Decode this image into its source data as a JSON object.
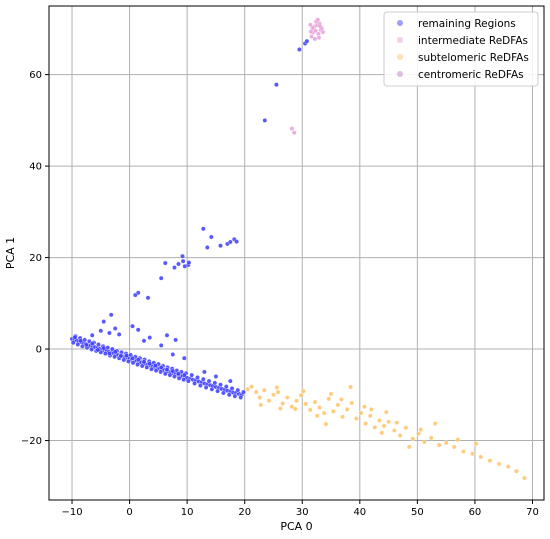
{
  "chart_data": {
    "type": "scatter",
    "xlabel": "PCA 0",
    "ylabel": "PCA 1",
    "xlim": [
      -14,
      72
    ],
    "ylim": [
      -33,
      75
    ],
    "xticks": [
      -10,
      0,
      10,
      20,
      30,
      40,
      50,
      60,
      70
    ],
    "yticks": [
      -20,
      0,
      20,
      40,
      60
    ],
    "grid": true,
    "legend_position": "top-right",
    "series": [
      {
        "name": "remaining Regions",
        "color": "#3b3bff",
        "points": [
          [
            -10,
            2.2
          ],
          [
            -9.6,
            2.0
          ],
          [
            -9.2,
            1.9
          ],
          [
            -8.8,
            1.6
          ],
          [
            -8.4,
            1.5
          ],
          [
            -8,
            1.3
          ],
          [
            -7.6,
            1.1
          ],
          [
            -7.2,
            0.9
          ],
          [
            -6.8,
            0.7
          ],
          [
            -6.4,
            0.6
          ],
          [
            -6,
            0.4
          ],
          [
            -5.6,
            0.2
          ],
          [
            -5.2,
            0.1
          ],
          [
            -4.8,
            -0.1
          ],
          [
            -4.4,
            -0.3
          ],
          [
            -4,
            -0.4
          ],
          [
            -3.6,
            -0.6
          ],
          [
            -3.2,
            -0.8
          ],
          [
            -2.8,
            -0.9
          ],
          [
            -2.4,
            -1.1
          ],
          [
            -2,
            -1.3
          ],
          [
            -1.6,
            -1.4
          ],
          [
            -1.2,
            -1.6
          ],
          [
            -0.8,
            -1.8
          ],
          [
            -0.4,
            -1.9
          ],
          [
            0,
            -2.1
          ],
          [
            0.4,
            -2.3
          ],
          [
            0.8,
            -2.4
          ],
          [
            1.2,
            -2.6
          ],
          [
            1.6,
            -2.8
          ],
          [
            2,
            -2.9
          ],
          [
            2.4,
            -3.1
          ],
          [
            2.8,
            -3.3
          ],
          [
            3.2,
            -3.4
          ],
          [
            3.6,
            -3.6
          ],
          [
            4,
            -3.8
          ],
          [
            4.4,
            -3.9
          ],
          [
            4.8,
            -4.1
          ],
          [
            5.2,
            -4.3
          ],
          [
            5.6,
            -4.4
          ],
          [
            6,
            -4.6
          ],
          [
            6.4,
            -4.8
          ],
          [
            6.8,
            -4.9
          ],
          [
            7.2,
            -5.1
          ],
          [
            7.6,
            -5.3
          ],
          [
            8,
            -5.4
          ],
          [
            8.4,
            -5.6
          ],
          [
            8.8,
            -5.8
          ],
          [
            9.2,
            -5.9
          ],
          [
            9.6,
            -6.1
          ],
          [
            10,
            -6.3
          ],
          [
            10.5,
            -6.5
          ],
          [
            11,
            -6.7
          ],
          [
            11.5,
            -6.9
          ],
          [
            12,
            -7.1
          ],
          [
            12.5,
            -7.3
          ],
          [
            13,
            -7.5
          ],
          [
            13.5,
            -7.7
          ],
          [
            14,
            -7.9
          ],
          [
            14.5,
            -8.1
          ],
          [
            15,
            -8.3
          ],
          [
            15.5,
            -8.5
          ],
          [
            16,
            -8.7
          ],
          [
            16.5,
            -8.9
          ],
          [
            17,
            -9.1
          ],
          [
            17.5,
            -9.3
          ],
          [
            18,
            -9.5
          ],
          [
            18.5,
            -9.6
          ],
          [
            19,
            -9.8
          ],
          [
            19.5,
            -10
          ],
          [
            -9.8,
            1.4
          ],
          [
            -9.4,
            2.8
          ],
          [
            -9,
            1.0
          ],
          [
            -8.6,
            2.4
          ],
          [
            -8.2,
            0.6
          ],
          [
            -7.8,
            2.0
          ],
          [
            -7.4,
            0.3
          ],
          [
            -7,
            1.7
          ],
          [
            -6.6,
            -0.1
          ],
          [
            -6.2,
            1.4
          ],
          [
            -5.8,
            -0.4
          ],
          [
            -5.4,
            1.0
          ],
          [
            -5,
            -0.7
          ],
          [
            -4.6,
            0.6
          ],
          [
            -4.2,
            -1.0
          ],
          [
            -3.8,
            0.3
          ],
          [
            -3.4,
            -1.4
          ],
          [
            -3,
            0.0
          ],
          [
            -2.6,
            -1.7
          ],
          [
            -2.2,
            -0.4
          ],
          [
            -1.8,
            -2.0
          ],
          [
            -1.4,
            -0.7
          ],
          [
            -1,
            -2.4
          ],
          [
            -0.6,
            -1.0
          ],
          [
            -0.2,
            -2.7
          ],
          [
            0.2,
            -1.3
          ],
          [
            0.6,
            -3.0
          ],
          [
            1,
            -1.7
          ],
          [
            1.4,
            -3.4
          ],
          [
            1.8,
            -2.0
          ],
          [
            2.2,
            -3.7
          ],
          [
            2.6,
            -2.3
          ],
          [
            3,
            -4.0
          ],
          [
            3.4,
            -2.7
          ],
          [
            3.8,
            -4.4
          ],
          [
            4.2,
            -3.0
          ],
          [
            4.6,
            -4.7
          ],
          [
            5,
            -3.3
          ],
          [
            5.4,
            -5.0
          ],
          [
            5.8,
            -3.7
          ],
          [
            6.2,
            -5.4
          ],
          [
            6.6,
            -4.0
          ],
          [
            7,
            -5.7
          ],
          [
            7.4,
            -4.3
          ],
          [
            7.8,
            -6.0
          ],
          [
            8.2,
            -4.7
          ],
          [
            8.6,
            -6.4
          ],
          [
            9,
            -5.0
          ],
          [
            9.4,
            -6.7
          ],
          [
            9.8,
            -5.3
          ],
          [
            10.2,
            -7.0
          ],
          [
            10.8,
            -5.7
          ],
          [
            11.3,
            -7.5
          ],
          [
            11.8,
            -6.2
          ],
          [
            12.3,
            -8.0
          ],
          [
            12.8,
            -6.6
          ],
          [
            13.3,
            -8.4
          ],
          [
            13.8,
            -7.0
          ],
          [
            14.3,
            -8.8
          ],
          [
            14.8,
            -7.4
          ],
          [
            15.3,
            -9.2
          ],
          [
            15.8,
            -7.8
          ],
          [
            16.3,
            -9.6
          ],
          [
            16.8,
            -8.2
          ],
          [
            17.3,
            -10.0
          ],
          [
            17.8,
            -8.6
          ],
          [
            18.3,
            -10.3
          ],
          [
            18.8,
            -9.0
          ],
          [
            19.3,
            -10.6
          ],
          [
            19.8,
            -9.4
          ],
          [
            -9.5,
            2.6
          ],
          [
            -8.5,
            1.8
          ],
          [
            -7.5,
            0.9
          ],
          [
            -6.5,
            1.2
          ],
          [
            -5.5,
            -0.2
          ],
          [
            -4.5,
            0.2
          ],
          [
            -3.5,
            -1.0
          ],
          [
            -2.5,
            -0.6
          ],
          [
            -1.5,
            -1.5
          ],
          [
            -0.5,
            -1.4
          ],
          [
            0.5,
            -2.0
          ],
          [
            1.5,
            -2.3
          ],
          [
            2.5,
            -2.8
          ],
          [
            3.5,
            -3.2
          ],
          [
            4.5,
            -3.6
          ],
          [
            5.5,
            -4.0
          ],
          [
            6.5,
            -4.5
          ],
          [
            7.5,
            -4.8
          ],
          [
            8.5,
            -5.4
          ],
          [
            9.5,
            -5.7
          ],
          [
            -3.5,
            3.5
          ],
          [
            -2.5,
            4.5
          ],
          [
            -4.5,
            6.0
          ],
          [
            -3.2,
            7.5
          ],
          [
            -1.8,
            3.2
          ],
          [
            0.5,
            5.0
          ],
          [
            1.5,
            4.2
          ],
          [
            2.5,
            1.8
          ],
          [
            3.5,
            2.5
          ],
          [
            5.5,
            0.8
          ],
          [
            7.5,
            -1.2
          ],
          [
            9.5,
            -2.0
          ],
          [
            13,
            -5.0
          ],
          [
            15,
            -6.0
          ],
          [
            17.5,
            -7.0
          ],
          [
            -6.5,
            3.0
          ],
          [
            -5,
            4.0
          ],
          [
            6.5,
            3.0
          ],
          [
            8,
            2.0
          ],
          [
            1.5,
            12.3
          ],
          [
            1,
            11.8
          ],
          [
            3.2,
            11.2
          ],
          [
            5.5,
            15.5
          ],
          [
            6.2,
            18.8
          ],
          [
            7.8,
            17.8
          ],
          [
            8.5,
            18.6
          ],
          [
            9.2,
            20.3
          ],
          [
            9.3,
            19.2
          ],
          [
            9.6,
            18.1
          ],
          [
            10.2,
            18.4
          ],
          [
            10.3,
            18.9
          ],
          [
            12.8,
            26.3
          ],
          [
            13.5,
            22.2
          ],
          [
            14.2,
            24.5
          ],
          [
            15.8,
            22.6
          ],
          [
            17,
            23
          ],
          [
            17.5,
            23.4
          ],
          [
            18.2,
            24
          ],
          [
            18.6,
            23.5
          ],
          [
            23.5,
            50.0
          ],
          [
            25.5,
            57.8
          ],
          [
            29.5,
            65.5
          ],
          [
            30.5,
            66.8
          ],
          [
            30.8,
            67.3
          ]
        ]
      },
      {
        "name": "intermediate ReDFAs",
        "color": "#e8a0d8",
        "points": [
          [
            31.6,
            68.3
          ],
          [
            31.9,
            69.2
          ],
          [
            32.1,
            70.5
          ],
          [
            32.3,
            69.6
          ],
          [
            32.6,
            70.8
          ],
          [
            32.8,
            68.9
          ],
          [
            33,
            71.2
          ],
          [
            33.2,
            69.8
          ],
          [
            32.4,
            71.6
          ],
          [
            31.8,
            70.2
          ],
          [
            33.4,
            70.1
          ],
          [
            32.9,
            68.1
          ],
          [
            31.5,
            69.4
          ],
          [
            32.7,
            72.0
          ],
          [
            33.6,
            69.3
          ],
          [
            28.2,
            48.2
          ],
          [
            28.6,
            47.3
          ],
          [
            32.2,
            67.8
          ],
          [
            31.4,
            70.9
          ],
          [
            33.1,
            70.6
          ]
        ]
      },
      {
        "name": "subtelomeric ReDFAs",
        "color": "#ffc266",
        "points": [
          [
            20.5,
            -8.8
          ],
          [
            21.2,
            -8.2
          ],
          [
            22,
            -9.4
          ],
          [
            22.6,
            -10.6
          ],
          [
            23.4,
            -9.0
          ],
          [
            24.2,
            -11.3
          ],
          [
            25,
            -10.0
          ],
          [
            25.8,
            -9.4
          ],
          [
            26.6,
            -11.9
          ],
          [
            27.4,
            -10.6
          ],
          [
            28.2,
            -12.6
          ],
          [
            29,
            -11.3
          ],
          [
            29.8,
            -10.1
          ],
          [
            30.6,
            -12.0
          ],
          [
            31.4,
            -13.3
          ],
          [
            32.2,
            -11.6
          ],
          [
            33,
            -12.8
          ],
          [
            33.8,
            -14.0
          ],
          [
            34.6,
            -10.9
          ],
          [
            35.4,
            -13.6
          ],
          [
            36.2,
            -12.2
          ],
          [
            37,
            -14.8
          ],
          [
            37.8,
            -13.2
          ],
          [
            38.6,
            -11.8
          ],
          [
            39.4,
            -15.2
          ],
          [
            40.2,
            -14.0
          ],
          [
            41,
            -16.3
          ],
          [
            41.8,
            -14.6
          ],
          [
            42.6,
            -17.1
          ],
          [
            43.4,
            -15.6
          ],
          [
            44.2,
            -16.8
          ],
          [
            45,
            -15.9
          ],
          [
            46,
            -17.8
          ],
          [
            47,
            -18.9
          ],
          [
            48,
            -17.2
          ],
          [
            49.2,
            -19.6
          ],
          [
            50.2,
            -18.5
          ],
          [
            51.2,
            -20.3
          ],
          [
            52.4,
            -19.4
          ],
          [
            53.8,
            -21.0
          ],
          [
            55,
            -20.5
          ],
          [
            56.4,
            -21.4
          ],
          [
            58,
            -22.4
          ],
          [
            59.6,
            -22.9
          ],
          [
            61,
            -23.6
          ],
          [
            62.6,
            -24.4
          ],
          [
            64.2,
            -25.1
          ],
          [
            65.8,
            -25.7
          ],
          [
            67.2,
            -26.7
          ],
          [
            68.6,
            -28.2
          ],
          [
            46.4,
            -16.1
          ],
          [
            38.4,
            -8.3
          ],
          [
            25.6,
            -8.4
          ],
          [
            28.8,
            -13.1
          ],
          [
            34.1,
            -16.4
          ],
          [
            43.8,
            -18.3
          ],
          [
            50.6,
            -17.6
          ],
          [
            53.1,
            -16.3
          ],
          [
            36.8,
            -11.0
          ],
          [
            30.2,
            -9.2
          ],
          [
            32.6,
            -14.6
          ],
          [
            40.8,
            -12.6
          ],
          [
            44.6,
            -13.8
          ],
          [
            22.8,
            -12.2
          ],
          [
            26.2,
            -13.0
          ],
          [
            48.6,
            -21.4
          ],
          [
            57,
            -19.8
          ],
          [
            60.2,
            -20.7
          ],
          [
            35,
            -9.8
          ],
          [
            42,
            -13.2
          ]
        ]
      },
      {
        "name": "centromeric ReDFAs",
        "color": "#c080c0",
        "points": []
      }
    ]
  }
}
